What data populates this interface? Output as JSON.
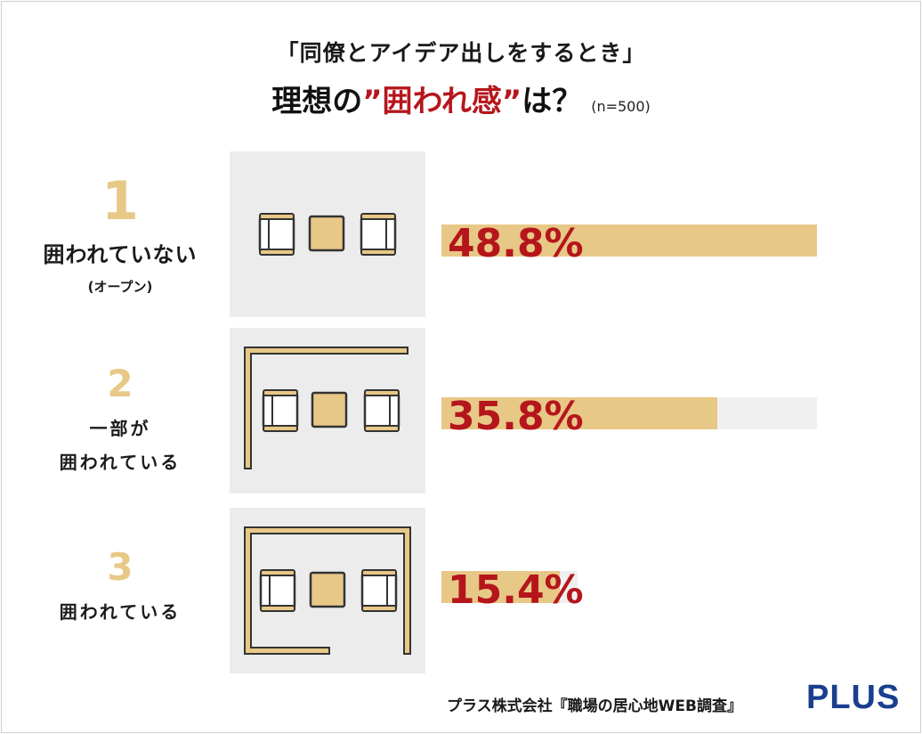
{
  "header": {
    "subtitle": "「同僚とアイデア出しをするとき」",
    "title_prefix": "理想の",
    "title_highlight": "”囲われ感”",
    "title_suffix": "は？",
    "sample": "(n=500)"
  },
  "chart_data": {
    "type": "bar",
    "orientation": "horizontal",
    "title": "理想の”囲われ感”は？",
    "subtitle": "「同僚とアイデア出しをするとき」",
    "categories": [
      "囲われていない（オープン）",
      "一部が囲われている",
      "囲われている"
    ],
    "values": [
      48.8,
      35.8,
      15.4
    ],
    "unit": "%",
    "xlim": [
      0,
      100
    ],
    "grid": false,
    "legend": "none",
    "bar_color": "#e8c887",
    "label_color": "#b5161c"
  },
  "rows": [
    {
      "rank": "1",
      "label": "囲われていない",
      "sub": "(オープン)",
      "value": 48.8,
      "pct_label": "48.8%"
    },
    {
      "rank": "2",
      "label_line1": "一部が",
      "label_line2": "囲われている",
      "value": 35.8,
      "pct_label": "35.8%"
    },
    {
      "rank": "3",
      "label": "囲われている",
      "value": 15.4,
      "pct_label": "15.4%"
    }
  ],
  "footer": {
    "source": "プラス株式会社『職場の居心地WEB調査』",
    "logo": "PLUS"
  },
  "colors": {
    "accent_gold": "#e8c887",
    "accent_red": "#b5161c",
    "panel_bg": "#ececec",
    "logo_blue": "#1a3f8f"
  }
}
